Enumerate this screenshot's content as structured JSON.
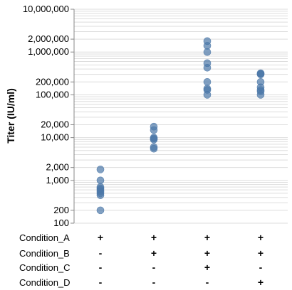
{
  "chart_data": {
    "type": "scatter",
    "ylabel": "Titer (IU/ml)",
    "yscale": "log",
    "ylim": [
      100,
      10000000
    ],
    "grid": true,
    "legend": "none",
    "marker_color": "#4c78a8",
    "y_tick_labels": [
      "10,000,000",
      "2,000,000",
      "1,000,000",
      "200,000",
      "100,000",
      "20,000",
      "10,000",
      "2,000",
      "1,000",
      "200",
      "100"
    ],
    "y_tick_values": [
      10000000,
      2000000,
      1000000,
      200000,
      100000,
      20000,
      10000,
      2000,
      1000,
      200,
      100
    ],
    "condition_labels": [
      "Condition_A",
      "Condition_B",
      "Condition_C",
      "Condition_D"
    ],
    "groups": [
      {
        "signs": [
          "+",
          "-",
          "-",
          "-"
        ],
        "values": [
          1800,
          1000,
          700,
          650,
          600,
          550,
          500,
          450,
          200
        ]
      },
      {
        "signs": [
          "+",
          "+",
          "-",
          "-"
        ],
        "values": [
          18000,
          15000,
          10000,
          9500,
          9000,
          6000,
          5500
        ]
      },
      {
        "signs": [
          "+",
          "+",
          "+",
          "-"
        ],
        "values": [
          1800000,
          1400000,
          1000000,
          550000,
          430000,
          200000,
          140000,
          130000,
          100000
        ]
      },
      {
        "signs": [
          "+",
          "+",
          "-",
          "+"
        ],
        "values": [
          320000,
          310000,
          300000,
          200000,
          150000,
          130000,
          120000,
          100000
        ]
      }
    ]
  }
}
